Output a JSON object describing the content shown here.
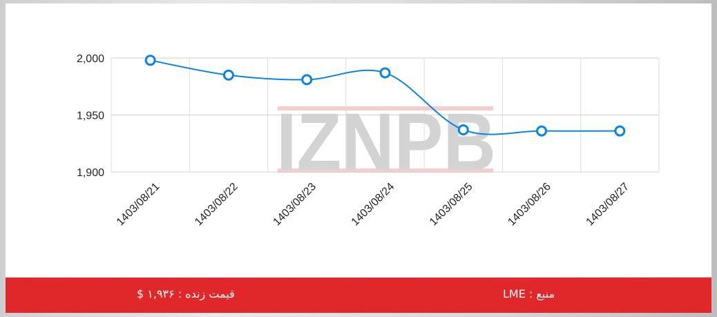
{
  "chart_data": {
    "type": "line",
    "categories": [
      "1403/08/21",
      "1403/08/22",
      "1403/08/23",
      "1403/08/24",
      "1403/08/25",
      "1403/08/26",
      "1403/08/27"
    ],
    "series": [
      {
        "values": [
          1998,
          1985,
          1981,
          1987,
          1937,
          1936,
          1936
        ]
      }
    ],
    "yticks": [
      "2,000",
      "1,950",
      "1,900"
    ],
    "ylim": [
      1900,
      2000
    ],
    "grid": true,
    "line_color": "#0a84e0"
  },
  "watermark": "IZNPB",
  "footer": {
    "live_price": "قیمت زنده : ۱,۹۳۶ $",
    "source": "منبع : LME"
  },
  "colors": {
    "footer_bg": "#e0282b"
  }
}
